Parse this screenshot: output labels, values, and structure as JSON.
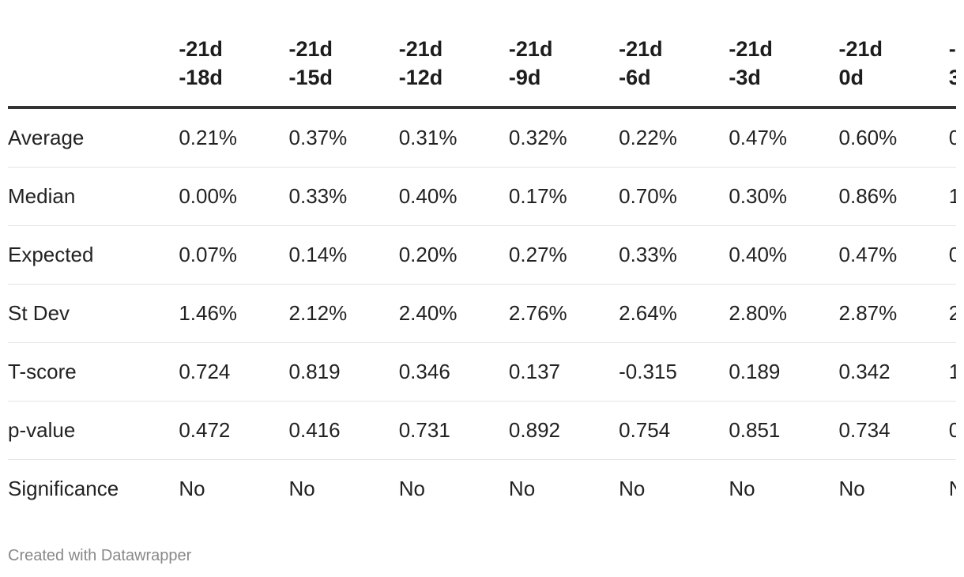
{
  "chart_data": {
    "type": "table",
    "columns": [
      {
        "line1": "-21d",
        "line2": "-18d"
      },
      {
        "line1": "-21d",
        "line2": "-15d"
      },
      {
        "line1": "-21d",
        "line2": "-12d"
      },
      {
        "line1": "-21d",
        "line2": "-9d"
      },
      {
        "line1": "-21d",
        "line2": "-6d"
      },
      {
        "line1": "-21d",
        "line2": "-3d"
      },
      {
        "line1": "-21d",
        "line2": "0d"
      },
      {
        "line1": "-",
        "line2": "3"
      }
    ],
    "rows": [
      {
        "label": "Average",
        "values": [
          "0.21%",
          "0.37%",
          "0.31%",
          "0.32%",
          "0.22%",
          "0.47%",
          "0.60%",
          "0"
        ]
      },
      {
        "label": "Median",
        "values": [
          "0.00%",
          "0.33%",
          "0.40%",
          "0.17%",
          "0.70%",
          "0.30%",
          "0.86%",
          "1"
        ]
      },
      {
        "label": "Expected",
        "values": [
          "0.07%",
          "0.14%",
          "0.20%",
          "0.27%",
          "0.33%",
          "0.40%",
          "0.47%",
          "0"
        ]
      },
      {
        "label": "St Dev",
        "values": [
          "1.46%",
          "2.12%",
          "2.40%",
          "2.76%",
          "2.64%",
          "2.80%",
          "2.87%",
          "2"
        ]
      },
      {
        "label": "T-score",
        "values": [
          "0.724",
          "0.819",
          "0.346",
          "0.137",
          "-0.315",
          "0.189",
          "0.342",
          "1"
        ]
      },
      {
        "label": "p-value",
        "values": [
          "0.472",
          "0.416",
          "0.731",
          "0.892",
          "0.754",
          "0.851",
          "0.734",
          "0"
        ]
      },
      {
        "label": "Significance",
        "values": [
          "No",
          "No",
          "No",
          "No",
          "No",
          "No",
          "No",
          "N"
        ]
      }
    ]
  },
  "footer": {
    "credit": "Created with Datawrapper"
  }
}
